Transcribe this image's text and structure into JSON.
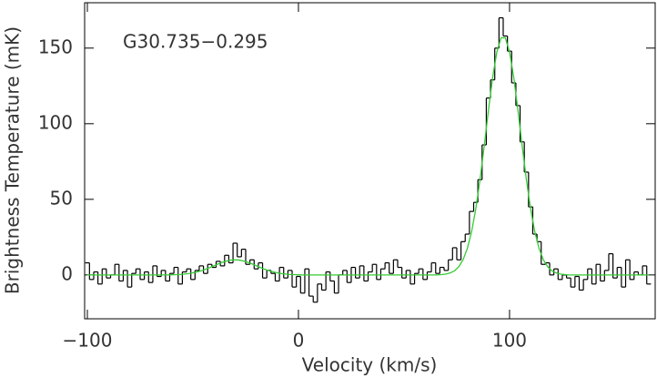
{
  "chart_data": {
    "type": "line",
    "annotation": "G30.735−0.295",
    "x_label": "Velocity (km/s)",
    "y_label": "Brightness Temperature (mK)",
    "x": [
      -100,
      -98,
      -96,
      -94,
      -92,
      -90,
      -88,
      -86,
      -84,
      -82,
      -80,
      -78,
      -76,
      -74,
      -72,
      -70,
      -68,
      -66,
      -64,
      -62,
      -60,
      -58,
      -56,
      -54,
      -52,
      -50,
      -48,
      -46,
      -44,
      -42,
      -40,
      -38,
      -36,
      -34,
      -32,
      -30,
      -28,
      -26,
      -24,
      -22,
      -20,
      -18,
      -16,
      -14,
      -12,
      -10,
      -8,
      -6,
      -4,
      -2,
      0,
      2,
      4,
      6,
      8,
      10,
      12,
      14,
      16,
      18,
      20,
      22,
      24,
      26,
      28,
      30,
      32,
      34,
      36,
      38,
      40,
      42,
      44,
      46,
      48,
      50,
      52,
      54,
      56,
      58,
      60,
      62,
      64,
      66,
      68,
      70,
      72,
      74,
      76,
      78,
      80,
      82,
      84,
      86,
      88,
      90,
      92,
      94,
      96,
      98,
      100,
      102,
      104,
      106,
      108,
      110,
      112,
      114,
      116,
      118,
      120,
      122,
      124,
      126,
      128,
      130,
      132,
      134,
      136,
      138,
      140,
      142,
      144,
      146,
      148,
      150,
      152,
      154,
      156,
      158,
      160,
      162,
      164,
      166
    ],
    "series": [
      {
        "color": "#000000",
        "drawstyle": "steps-mid",
        "values": [
          8,
          -3,
          2,
          -6,
          4,
          -2,
          0,
          7,
          -4,
          3,
          -8,
          1,
          4,
          -3,
          2,
          -5,
          6,
          -1,
          3,
          -4,
          1,
          5,
          -6,
          2,
          4,
          -3,
          3,
          6,
          1,
          7,
          5,
          9,
          6,
          13,
          8,
          21,
          12,
          17,
          7,
          10,
          4,
          8,
          -2,
          3,
          1,
          -4,
          5,
          -2,
          3,
          -8,
          -1,
          -12,
          4,
          -14,
          -18,
          -6,
          -10,
          2,
          -4,
          -12,
          0,
          3,
          -5,
          5,
          -2,
          6,
          -4,
          2,
          7,
          -3,
          4,
          8,
          1,
          10,
          5,
          -2,
          3,
          -6,
          1,
          4,
          -3,
          2,
          8,
          1,
          5,
          3,
          10,
          18,
          10,
          22,
          27,
          42,
          48,
          63,
          86,
          117,
          129,
          150,
          170,
          158,
          148,
          127,
          112,
          88,
          68,
          45,
          27,
          22,
          7,
          8,
          0,
          4,
          -3,
          0,
          -2,
          -8,
          -1,
          -10,
          -3,
          4,
          -6,
          7,
          -4,
          3,
          14,
          -2,
          5,
          -8,
          10,
          -3,
          2,
          0,
          6,
          -6
        ]
      },
      {
        "color": "#33cc33",
        "drawstyle": "default",
        "values": [
          0,
          0,
          0,
          0,
          0,
          0,
          0,
          0,
          0,
          0,
          0,
          0,
          0,
          0,
          0,
          0,
          0,
          0,
          0,
          0,
          0.1,
          0.2,
          0.3,
          0.6,
          0.9,
          1.4,
          2.0,
          2.8,
          3.8,
          4.9,
          6.1,
          7.3,
          8.4,
          9.2,
          9.8,
          10,
          9.8,
          9.2,
          8.4,
          7.3,
          6.1,
          4.9,
          3.8,
          2.8,
          2.0,
          1.4,
          0.9,
          0.6,
          0.3,
          0.2,
          0.1,
          0,
          0,
          0,
          0,
          0,
          0,
          0,
          0,
          0,
          0,
          0,
          0,
          0,
          0,
          0,
          0,
          0,
          0,
          0,
          0,
          0,
          0,
          0,
          0,
          0,
          0,
          0,
          0,
          0,
          0,
          0,
          0,
          0,
          0.3,
          0.6,
          1.4,
          2.8,
          5.5,
          10.1,
          17.5,
          28.4,
          43.6,
          62.8,
          85.2,
          108.7,
          130.6,
          147.5,
          156.8,
          156.8,
          147.5,
          130.6,
          108.7,
          85.2,
          62.8,
          43.6,
          28.4,
          17.5,
          10.1,
          5.5,
          2.8,
          1.4,
          0.6,
          0.3,
          0,
          0,
          0,
          0,
          0,
          0,
          0,
          0,
          0,
          0,
          0,
          0,
          0,
          0,
          0,
          0,
          0,
          0,
          0,
          0
        ]
      }
    ],
    "xlim": [
      -101.3,
      169
    ],
    "ylim": [
      -29,
      180
    ],
    "xticks": [
      {
        "value": -100,
        "label": "−100"
      },
      0,
      100
    ],
    "yticks": [
      0,
      50,
      100,
      150
    ]
  }
}
